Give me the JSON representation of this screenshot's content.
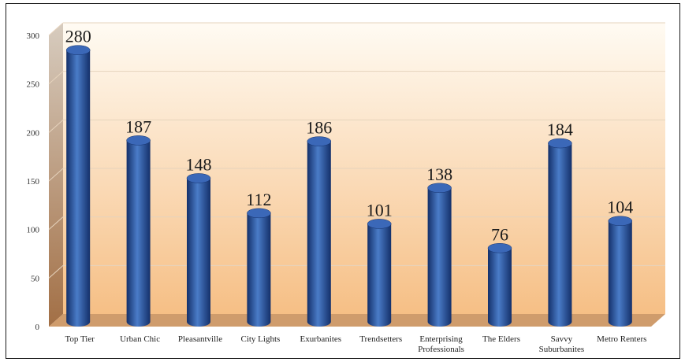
{
  "chart_data": {
    "type": "bar",
    "title": "",
    "xlabel": "",
    "ylabel": "",
    "categories": [
      "Top Tier",
      "Urban Chic",
      "Pleasantville",
      "City Lights",
      "Exurbanites",
      "Trendsetters",
      "Enterprising Professionals",
      "The Elders",
      "Savvy Suburbanites",
      "Metro Renters"
    ],
    "category_lines": [
      [
        "Top Tier"
      ],
      [
        "Urban Chic"
      ],
      [
        "Pleasantville"
      ],
      [
        "City Lights"
      ],
      [
        "Exurbanites"
      ],
      [
        "Trendsetters"
      ],
      [
        "Enterprising",
        "Professionals"
      ],
      [
        "The Elders"
      ],
      [
        "Savvy",
        "Suburbanites"
      ],
      [
        "Metro Renters"
      ]
    ],
    "values": [
      280,
      187,
      148,
      112,
      186,
      101,
      138,
      76,
      184,
      104
    ],
    "data_labels": [
      "280",
      "187",
      "148",
      "112",
      "186",
      "101",
      "138",
      "76",
      "184",
      "104"
    ],
    "ylim": [
      0,
      300
    ],
    "yticks": [
      0,
      50,
      100,
      150,
      200,
      250,
      300
    ],
    "ytick_labels": [
      "0",
      "50",
      "100",
      "150",
      "200",
      "250",
      "300"
    ],
    "grid": true,
    "legend": "none",
    "style": "3d-cylinder",
    "colors": {
      "bar_dark": "#14306a",
      "bar_mid": "#2a5aa8",
      "bar_light": "#4a7cc8",
      "bar_top": "#3b68b8",
      "wall_top": "#fffbf3",
      "wall_bottom": "#f6bf85",
      "side_wall_top": "#d7ccbf",
      "side_wall_bottom": "#a26f45",
      "floor": "#cf9c6c",
      "gridline": "#e6d3bd"
    }
  }
}
